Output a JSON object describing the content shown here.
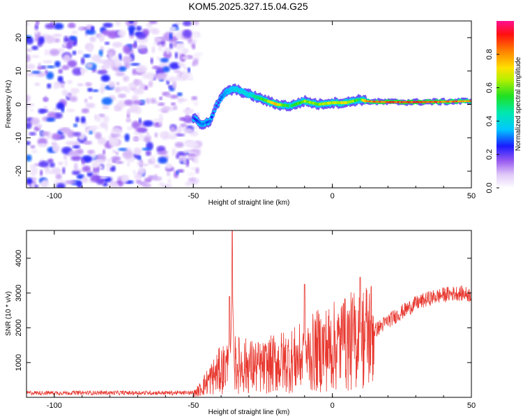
{
  "title": "KOM5.2025.327.15.04.G25",
  "chart_data": [
    {
      "type": "heatmap",
      "name": "spectrogram",
      "xlabel": "Height of straight line (km)",
      "ylabel": "Frequency (Hz)",
      "xlim": [
        -110,
        50
      ],
      "ylim": [
        -25,
        25
      ],
      "xticks": [
        -100,
        -50,
        0,
        50
      ],
      "yticks": [
        -20,
        -10,
        0,
        10,
        20
      ],
      "noise_region_x": [
        -110,
        -48
      ],
      "ridge": {
        "x": [
          -50,
          -47,
          -44,
          -42,
          -40,
          -38,
          -35,
          -30,
          -25,
          -20,
          -15,
          -10,
          -5,
          0,
          5,
          10,
          12,
          15,
          20,
          30,
          40,
          50
        ],
        "freq": [
          -4,
          -6,
          -5,
          -1,
          2,
          4,
          4.5,
          3,
          1.5,
          0,
          -0.5,
          1,
          0,
          0.5,
          0.5,
          1.5,
          1,
          0.8,
          0.7,
          0.7,
          0.8,
          1
        ],
        "amp": [
          0.25,
          0.35,
          0.3,
          0.2,
          0.3,
          0.35,
          0.4,
          0.45,
          0.6,
          0.8,
          0.5,
          0.7,
          0.65,
          0.7,
          0.75,
          0.55,
          0.85,
          0.9,
          0.95,
          0.95,
          0.9,
          0.85
        ]
      },
      "colorbar": {
        "label": "Normalized spectral amplitude",
        "ticks": [
          "0.0",
          "0.2",
          "0.4",
          "0.6",
          "0.8"
        ],
        "range": [
          0,
          1
        ]
      }
    },
    {
      "type": "line",
      "name": "snr",
      "xlabel": "Height of straight line (km)",
      "ylabel": "SNR (10 * v/v)",
      "xlim": [
        -110,
        50
      ],
      "ylim": [
        0,
        4800
      ],
      "xticks": [
        -100,
        -50,
        0,
        50
      ],
      "yticks": [
        1000,
        2000,
        3000,
        4000
      ],
      "color": "#e8382f",
      "envelope": {
        "x": [
          -110,
          -50,
          -48,
          -45,
          -40,
          -35,
          -30,
          -25,
          -20,
          -15,
          -10,
          -5,
          0,
          5,
          10,
          15,
          20,
          25,
          30,
          35,
          40,
          45,
          50
        ],
        "y": [
          100,
          100,
          200,
          450,
          800,
          950,
          900,
          850,
          1000,
          1050,
          1150,
          1350,
          1450,
          1550,
          1700,
          1900,
          2200,
          2450,
          2700,
          2850,
          2950,
          3000,
          2950
        ]
      },
      "spikes": [
        {
          "x": -36,
          "y": 4800
        },
        {
          "x": -37,
          "y": 2900
        },
        {
          "x": -10,
          "y": 3250
        },
        {
          "x": 4,
          "y": 2700
        },
        {
          "x": 10,
          "y": 3450
        }
      ]
    }
  ]
}
